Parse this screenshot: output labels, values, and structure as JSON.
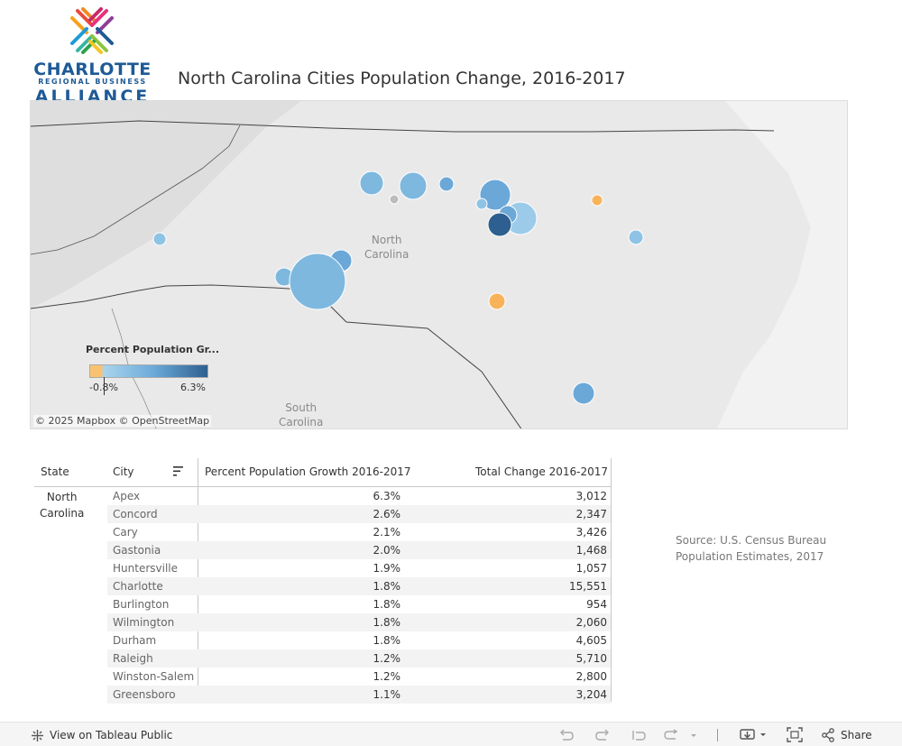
{
  "logo": {
    "line1": "CHARLOTTE",
    "line2": "REGIONAL BUSINESS",
    "line3": "ALLIANCE"
  },
  "title": "North Carolina Cities Population Change, 2016-2017",
  "map": {
    "labels": {
      "north_carolina": "North\nCarolina",
      "south_carolina": "South\nCarolina"
    },
    "attribution": "© 2025 Mapbox  © OpenStreetMap",
    "legend": {
      "title": "Percent Population Gr...",
      "min": "-0.8%",
      "max": "6.3%",
      "colors": {
        "negative": "#f8c271",
        "low": "#a9d3ec",
        "mid": "#6aa9d9",
        "high": "#2d5f90"
      }
    }
  },
  "table": {
    "headers": {
      "state": "State",
      "city": "City",
      "pct": "Percent Population Growth 2016-2017",
      "total": "Total Change 2016-2017"
    },
    "state": "North\nCarolina",
    "rows": [
      {
        "city": "Apex",
        "pct": "6.3%",
        "total": "3,012"
      },
      {
        "city": "Concord",
        "pct": "2.6%",
        "total": "2,347"
      },
      {
        "city": "Cary",
        "pct": "2.1%",
        "total": "3,426"
      },
      {
        "city": "Gastonia",
        "pct": "2.0%",
        "total": "1,468"
      },
      {
        "city": "Huntersville",
        "pct": "1.9%",
        "total": "1,057"
      },
      {
        "city": "Charlotte",
        "pct": "1.8%",
        "total": "15,551"
      },
      {
        "city": "Burlington",
        "pct": "1.8%",
        "total": "954"
      },
      {
        "city": "Wilmington",
        "pct": "1.8%",
        "total": "2,060"
      },
      {
        "city": "Durham",
        "pct": "1.8%",
        "total": "4,605"
      },
      {
        "city": "Raleigh",
        "pct": "1.2%",
        "total": "5,710"
      },
      {
        "city": "Winston-Salem",
        "pct": "1.2%",
        "total": "2,800"
      },
      {
        "city": "Greensboro",
        "pct": "1.1%",
        "total": "3,204"
      }
    ]
  },
  "source": "Source: U.S. Census Bureau Population Estimates, 2017",
  "toolbar": {
    "view_label": "View on Tableau Public",
    "share_label": "Share"
  }
}
